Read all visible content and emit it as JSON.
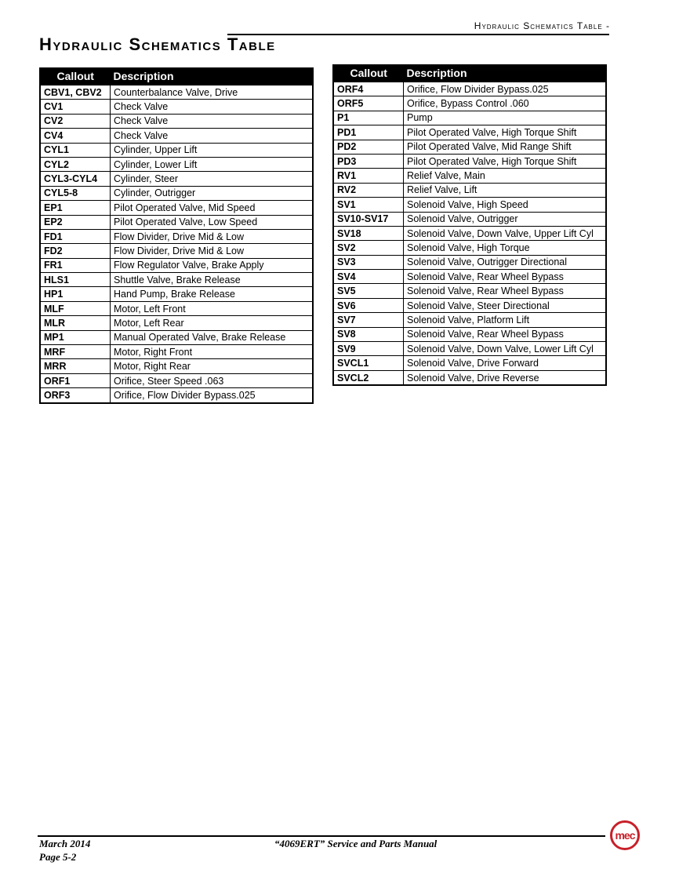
{
  "header": {
    "running_title": "Hydraulic Schematics Table -",
    "title": "Hydraulic Schematics Table"
  },
  "columns": {
    "callout": "Callout",
    "description": "Description"
  },
  "left_rows": [
    [
      "CBV1, CBV2",
      "Counterbalance Valve, Drive"
    ],
    [
      "CV1",
      "Check Valve"
    ],
    [
      "CV2",
      "Check Valve"
    ],
    [
      "CV4",
      "Check Valve"
    ],
    [
      "CYL1",
      "Cylinder, Upper Lift"
    ],
    [
      "CYL2",
      "Cylinder, Lower Lift"
    ],
    [
      "CYL3-CYL4",
      "Cylinder, Steer"
    ],
    [
      "CYL5-8",
      "Cylinder, Outrigger"
    ],
    [
      "EP1",
      "Pilot Operated Valve, Mid Speed"
    ],
    [
      "EP2",
      "Pilot Operated Valve, Low Speed"
    ],
    [
      "FD1",
      "Flow Divider, Drive Mid & Low"
    ],
    [
      "FD2",
      "Flow Divider, Drive Mid & Low"
    ],
    [
      "FR1",
      "Flow Regulator Valve, Brake Apply"
    ],
    [
      "HLS1",
      "Shuttle Valve, Brake Release"
    ],
    [
      "HP1",
      "Hand Pump, Brake Release"
    ],
    [
      "MLF",
      "Motor, Left Front"
    ],
    [
      "MLR",
      "Motor, Left Rear"
    ],
    [
      "MP1",
      "Manual Operated Valve, Brake Release"
    ],
    [
      "MRF",
      "Motor, Right Front"
    ],
    [
      "MRR",
      "Motor, Right Rear"
    ],
    [
      "ORF1",
      "Orifice, Steer Speed .063"
    ],
    [
      "ORF3",
      "Orifice, Flow Divider Bypass.025"
    ]
  ],
  "right_rows": [
    [
      "ORF4",
      "Orifice, Flow Divider Bypass.025"
    ],
    [
      "ORF5",
      "Orifice, Bypass Control .060"
    ],
    [
      "P1",
      "Pump"
    ],
    [
      "PD1",
      "Pilot Operated Valve, High Torque Shift"
    ],
    [
      "PD2",
      "Pilot Operated Valve, Mid Range Shift"
    ],
    [
      "PD3",
      "Pilot Operated Valve, High Torque Shift"
    ],
    [
      "RV1",
      "Relief Valve, Main"
    ],
    [
      "RV2",
      "Relief Valve, Lift"
    ],
    [
      "SV1",
      "Solenoid Valve, High Speed"
    ],
    [
      "SV10-SV17",
      "Solenoid Valve, Outrigger"
    ],
    [
      "SV18",
      "Solenoid Valve, Down Valve, Upper Lift Cyl"
    ],
    [
      "SV2",
      "Solenoid Valve, High Torque"
    ],
    [
      "SV3",
      "Solenoid Valve, Outrigger Directional"
    ],
    [
      "SV4",
      "Solenoid Valve, Rear Wheel Bypass"
    ],
    [
      "SV5",
      "Solenoid Valve, Rear Wheel Bypass"
    ],
    [
      "SV6",
      "Solenoid Valve, Steer Directional"
    ],
    [
      "SV7",
      "Solenoid Valve, Platform Lift"
    ],
    [
      "SV8",
      "Solenoid Valve, Rear Wheel Bypass"
    ],
    [
      "SV9",
      "Solenoid Valve, Down Valve, Lower Lift Cyl"
    ],
    [
      "SVCL1",
      "Solenoid Valve, Drive Forward"
    ],
    [
      "SVCL2",
      "Solenoid Valve, Drive Reverse"
    ]
  ],
  "footer": {
    "date": "March 2014",
    "page": "Page 5-2",
    "manual": "“4069ERT” Service and Parts Manual",
    "logo_text": "mec",
    "logo_color": "#c8202a"
  }
}
